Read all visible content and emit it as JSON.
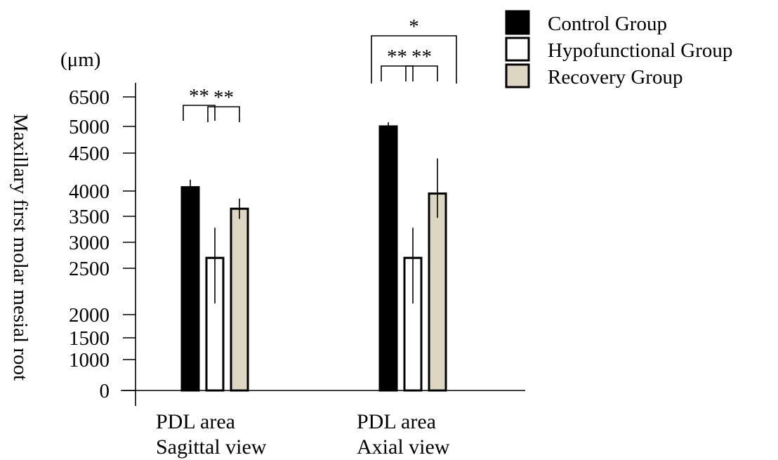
{
  "chart_data": {
    "type": "bar",
    "title": "",
    "xlabel": "",
    "ylabel": "Maxillary first molar mesial root",
    "unit_label": "(μm)",
    "categories": [
      [
        "PDL area",
        "Sagittal view"
      ],
      [
        "PDL area",
        "Axial view"
      ]
    ],
    "series": [
      {
        "name": "Control Group",
        "color": "#000000",
        "values": [
          4050,
          5000
        ],
        "errors": [
          100,
          210
        ]
      },
      {
        "name": "Hypofunctional Group",
        "color": "#ffffff",
        "values": [
          2700,
          2700
        ],
        "errors": [
          580,
          580
        ]
      },
      {
        "name": "Recovery Group",
        "color": "#dcd6c2",
        "values": [
          3650,
          3950
        ],
        "errors": [
          200,
          480
        ]
      }
    ],
    "yticks": [
      "0",
      "1000",
      "1500",
      "2000",
      "2500",
      "3000",
      "3500",
      "4000",
      "4500",
      "5000",
      "6500"
    ],
    "legend_position": "top-right",
    "significance": [
      {
        "label": "**",
        "category": 0,
        "between": [
          "Control Group",
          "Hypofunctional Group"
        ]
      },
      {
        "label": "**",
        "category": 0,
        "between": [
          "Hypofunctional Group",
          "Recovery Group"
        ]
      },
      {
        "label": "**",
        "category": 1,
        "between": [
          "Control Group",
          "Hypofunctional Group"
        ]
      },
      {
        "label": "**",
        "category": 1,
        "between": [
          "Hypofunctional Group",
          "Recovery Group"
        ]
      },
      {
        "label": "*",
        "category": 1,
        "between": [
          "Control Group",
          "Recovery Group"
        ]
      }
    ],
    "grid": false
  }
}
